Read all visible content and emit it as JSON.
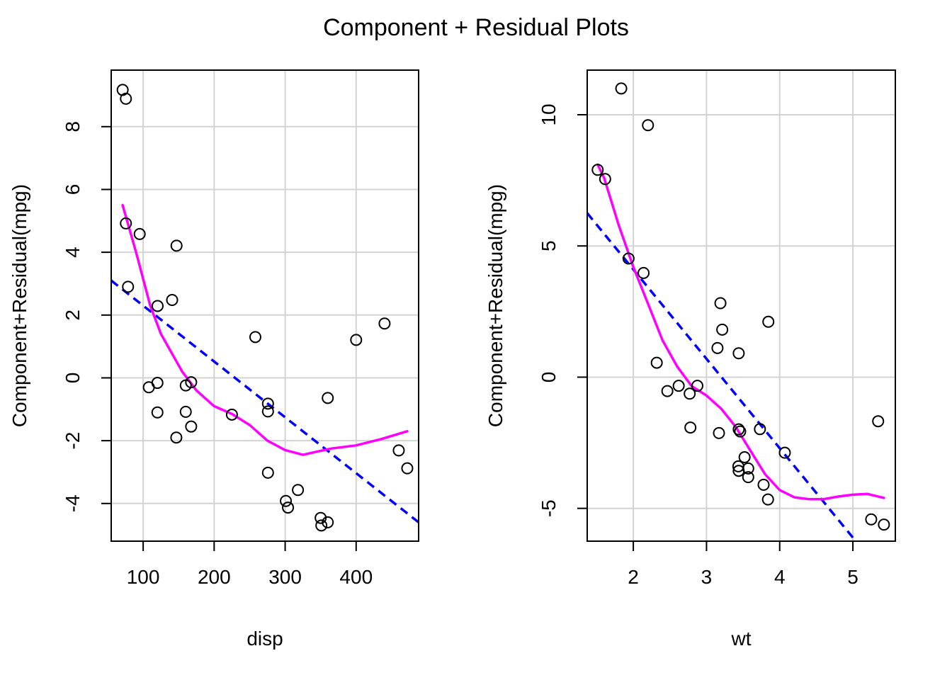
{
  "title": "Component + Residual Plots",
  "colors": {
    "points": "#000000",
    "linear_fit": "#0000FF",
    "smooth_fit": "#FF00FF",
    "grid": "#D3D3D3",
    "frame": "#000000"
  },
  "chart_data": [
    {
      "type": "scatter",
      "xlabel": "disp",
      "ylabel": "Component+Residual(mpg)",
      "xlim": [
        55,
        488
      ],
      "ylim": [
        -5.2,
        9.8
      ],
      "xticks": [
        100,
        200,
        300,
        400
      ],
      "yticks": [
        -4,
        -2,
        0,
        2,
        4,
        6,
        8
      ],
      "grid": true,
      "points": [
        [
          71.1,
          9.17
        ],
        [
          75.7,
          8.89
        ],
        [
          78.7,
          2.9
        ],
        [
          75.7,
          4.92
        ],
        [
          95.1,
          4.58
        ],
        [
          147.0,
          4.21
        ],
        [
          140.8,
          2.48
        ],
        [
          120.3,
          2.29
        ],
        [
          120.1,
          -0.16
        ],
        [
          108.0,
          -0.3
        ],
        [
          120.1,
          -1.1
        ],
        [
          146.7,
          -1.9
        ],
        [
          160.0,
          -1.08
        ],
        [
          167.6,
          -1.55
        ],
        [
          160.0,
          -0.24
        ],
        [
          167.6,
          -0.14
        ],
        [
          225.0,
          -1.17
        ],
        [
          258.0,
          1.3
        ],
        [
          275.8,
          -0.82
        ],
        [
          275.8,
          -1.07
        ],
        [
          275.8,
          -3.02
        ],
        [
          301.0,
          -3.92
        ],
        [
          304.0,
          -4.13
        ],
        [
          318.0,
          -3.57
        ],
        [
          350.0,
          -4.46
        ],
        [
          351.0,
          -4.7
        ],
        [
          360.0,
          -4.6
        ],
        [
          360.0,
          -0.64
        ],
        [
          400.0,
          1.21
        ],
        [
          440.0,
          1.73
        ],
        [
          460.0,
          -2.31
        ],
        [
          472.0,
          -2.88
        ]
      ],
      "linear_fit": [
        [
          55,
          3.1
        ],
        [
          488,
          -4.6
        ]
      ],
      "smooth_fit": [
        [
          71.1,
          5.5
        ],
        [
          90,
          4.0
        ],
        [
          110,
          2.3
        ],
        [
          125,
          1.4
        ],
        [
          140,
          0.8
        ],
        [
          155,
          0.2
        ],
        [
          175,
          -0.4
        ],
        [
          200,
          -0.9
        ],
        [
          225,
          -1.15
        ],
        [
          250,
          -1.5
        ],
        [
          275,
          -2.0
        ],
        [
          300,
          -2.3
        ],
        [
          325,
          -2.45
        ],
        [
          345,
          -2.35
        ],
        [
          365,
          -2.25
        ],
        [
          400,
          -2.15
        ],
        [
          435,
          -1.95
        ],
        [
          472,
          -1.7
        ]
      ]
    },
    {
      "type": "scatter",
      "xlabel": "wt",
      "ylabel": "Component+Residual(mpg)",
      "xlim": [
        1.37,
        5.58
      ],
      "ylim": [
        -6.25,
        11.7
      ],
      "xticks": [
        2,
        3,
        4,
        5
      ],
      "yticks": [
        -5,
        0,
        5,
        10
      ],
      "grid": true,
      "points": [
        [
          1.835,
          11.0
        ],
        [
          2.2,
          9.6
        ],
        [
          1.513,
          7.9
        ],
        [
          1.615,
          7.55
        ],
        [
          1.935,
          4.52
        ],
        [
          2.14,
          3.97
        ],
        [
          2.32,
          0.55
        ],
        [
          2.465,
          -0.53
        ],
        [
          2.62,
          -0.33
        ],
        [
          2.77,
          -0.63
        ],
        [
          2.78,
          -1.92
        ],
        [
          2.875,
          -0.33
        ],
        [
          3.15,
          1.11
        ],
        [
          3.17,
          -2.13
        ],
        [
          3.19,
          2.82
        ],
        [
          3.215,
          1.81
        ],
        [
          3.435,
          -3.4
        ],
        [
          3.44,
          0.91
        ],
        [
          3.44,
          -1.99
        ],
        [
          3.44,
          -3.57
        ],
        [
          3.46,
          -2.07
        ],
        [
          3.52,
          -3.05
        ],
        [
          3.57,
          -3.48
        ],
        [
          3.57,
          -3.81
        ],
        [
          3.73,
          -1.98
        ],
        [
          3.78,
          -4.1
        ],
        [
          3.84,
          -4.66
        ],
        [
          3.845,
          2.11
        ],
        [
          4.07,
          -2.88
        ],
        [
          5.25,
          -5.42
        ],
        [
          5.345,
          -1.68
        ],
        [
          5.424,
          -5.62
        ]
      ],
      "linear_fit": [
        [
          1.37,
          6.25
        ],
        [
          5.04,
          -6.25
        ]
      ],
      "smooth_fit": [
        [
          1.513,
          8.1
        ],
        [
          1.6,
          7.6
        ],
        [
          1.8,
          5.8
        ],
        [
          2.0,
          4.2
        ],
        [
          2.2,
          2.8
        ],
        [
          2.4,
          1.4
        ],
        [
          2.6,
          0.4
        ],
        [
          2.8,
          -0.35
        ],
        [
          3.0,
          -0.7
        ],
        [
          3.2,
          -1.2
        ],
        [
          3.4,
          -1.9
        ],
        [
          3.6,
          -2.8
        ],
        [
          3.8,
          -3.7
        ],
        [
          4.0,
          -4.3
        ],
        [
          4.2,
          -4.58
        ],
        [
          4.4,
          -4.65
        ],
        [
          4.6,
          -4.65
        ],
        [
          4.8,
          -4.55
        ],
        [
          5.0,
          -4.48
        ],
        [
          5.2,
          -4.45
        ],
        [
          5.424,
          -4.6
        ]
      ]
    }
  ]
}
